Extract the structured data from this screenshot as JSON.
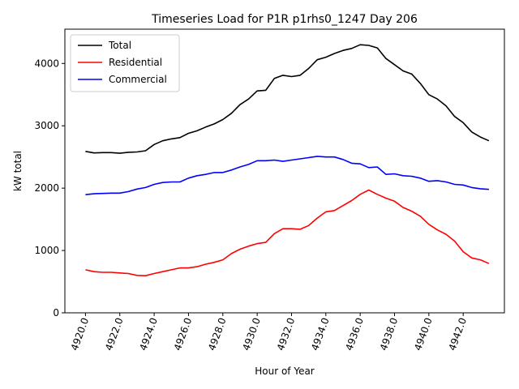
{
  "chart_data": {
    "type": "line",
    "title": "Timeseries Load for P1R p1rhs0_1247  Day 206",
    "xlabel": "Hour of Year",
    "ylabel": "kW total",
    "xlim": [
      4918.8,
      4944.4
    ],
    "ylim": [
      0,
      4550
    ],
    "xticks": [
      4920,
      4922,
      4924,
      4926,
      4928,
      4930,
      4932,
      4934,
      4936,
      4938,
      4940,
      4942
    ],
    "xtick_labels": [
      "4920.0",
      "4922.0",
      "4924.0",
      "4926.0",
      "4928.0",
      "4930.0",
      "4932.0",
      "4934.0",
      "4936.0",
      "4938.0",
      "4940.0",
      "4942.0"
    ],
    "yticks": [
      0,
      1000,
      2000,
      3000,
      4000
    ],
    "ytick_labels": [
      "0",
      "1000",
      "2000",
      "3000",
      "4000"
    ],
    "legend_position": "top-left",
    "x": [
      4920.0,
      4920.5,
      4921.0,
      4921.5,
      4922.0,
      4922.5,
      4923.0,
      4923.5,
      4924.0,
      4924.5,
      4925.0,
      4925.5,
      4926.0,
      4926.5,
      4927.0,
      4927.5,
      4928.0,
      4928.5,
      4929.0,
      4929.5,
      4930.0,
      4930.5,
      4931.0,
      4931.5,
      4932.0,
      4932.5,
      4933.0,
      4933.5,
      4934.0,
      4934.5,
      4935.0,
      4935.5,
      4936.0,
      4936.5,
      4937.0,
      4937.5,
      4938.0,
      4938.5,
      4939.0,
      4939.5,
      4940.0,
      4940.5,
      4941.0,
      4941.5,
      4942.0,
      4942.5,
      4943.0,
      4943.5
    ],
    "series": [
      {
        "name": "Total",
        "color": "#000000",
        "values": [
          2590,
          2565,
          2570,
          2570,
          2560,
          2575,
          2580,
          2600,
          2700,
          2760,
          2790,
          2810,
          2880,
          2920,
          2980,
          3030,
          3100,
          3200,
          3340,
          3430,
          3560,
          3570,
          3760,
          3810,
          3790,
          3810,
          3920,
          4060,
          4100,
          4160,
          4210,
          4240,
          4300,
          4290,
          4250,
          4080,
          3980,
          3880,
          3830,
          3680,
          3500,
          3430,
          3320,
          3150,
          3050,
          2900,
          2820,
          2760
        ]
      },
      {
        "name": "Residential",
        "color": "#ff0000",
        "values": [
          690,
          660,
          650,
          650,
          640,
          630,
          600,
          595,
          630,
          660,
          690,
          720,
          720,
          740,
          780,
          810,
          850,
          950,
          1020,
          1070,
          1110,
          1130,
          1270,
          1350,
          1350,
          1340,
          1400,
          1520,
          1620,
          1640,
          1720,
          1800,
          1900,
          1970,
          1900,
          1840,
          1790,
          1690,
          1630,
          1550,
          1420,
          1330,
          1260,
          1150,
          980,
          880,
          850,
          790
        ]
      },
      {
        "name": "Commercial",
        "color": "#0000ff",
        "values": [
          1895,
          1910,
          1915,
          1920,
          1920,
          1945,
          1985,
          2010,
          2060,
          2090,
          2100,
          2100,
          2160,
          2200,
          2220,
          2250,
          2250,
          2290,
          2340,
          2380,
          2440,
          2440,
          2450,
          2430,
          2450,
          2470,
          2490,
          2510,
          2500,
          2500,
          2460,
          2400,
          2390,
          2330,
          2340,
          2220,
          2230,
          2200,
          2190,
          2160,
          2110,
          2120,
          2100,
          2060,
          2050,
          2010,
          1990,
          1980
        ]
      }
    ]
  }
}
